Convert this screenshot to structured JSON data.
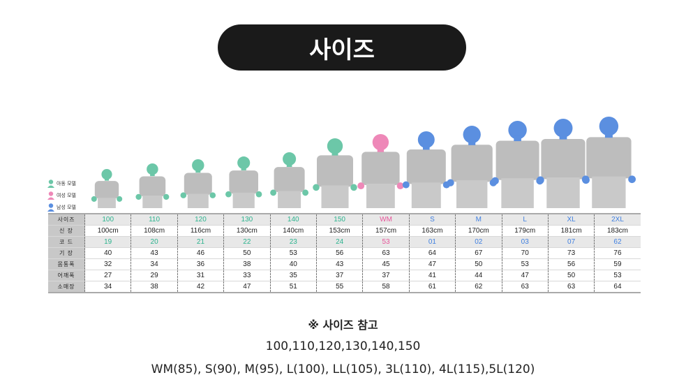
{
  "title": "사이즈",
  "legend": [
    {
      "label": "아동 모델",
      "color": "#6cc7a8"
    },
    {
      "label": "여성 모델",
      "color": "#ee88b8"
    },
    {
      "label": "남성 모델",
      "color": "#5b8fe0"
    }
  ],
  "colors": {
    "child": "#2bb38e",
    "women": "#e8559a",
    "men": "#3f7fe0",
    "body": "#bdbdbd"
  },
  "table": {
    "row_headers": [
      "사이즈",
      "신 장",
      "코 드",
      "기 장",
      "몸통폭",
      "어깨폭",
      "소매장"
    ],
    "columns": [
      {
        "size": "100",
        "height": "100cm",
        "code": "19",
        "length": "40",
        "chest": "32",
        "shoulder": "27",
        "sleeve": "34",
        "group": "child"
      },
      {
        "size": "110",
        "height": "108cm",
        "code": "20",
        "length": "43",
        "chest": "34",
        "shoulder": "29",
        "sleeve": "38",
        "group": "child"
      },
      {
        "size": "120",
        "height": "116cm",
        "code": "21",
        "length": "46",
        "chest": "36",
        "shoulder": "31",
        "sleeve": "42",
        "group": "child"
      },
      {
        "size": "130",
        "height": "130cm",
        "code": "22",
        "length": "50",
        "chest": "38",
        "shoulder": "33",
        "sleeve": "47",
        "group": "child"
      },
      {
        "size": "140",
        "height": "140cm",
        "code": "23",
        "length": "53",
        "chest": "40",
        "shoulder": "35",
        "sleeve": "51",
        "group": "child"
      },
      {
        "size": "150",
        "height": "153cm",
        "code": "24",
        "length": "56",
        "chest": "43",
        "shoulder": "37",
        "sleeve": "55",
        "group": "child"
      },
      {
        "size": "WM",
        "height": "157cm",
        "code": "53",
        "length": "63",
        "chest": "45",
        "shoulder": "37",
        "sleeve": "58",
        "group": "women"
      },
      {
        "size": "S",
        "height": "163cm",
        "code": "01",
        "length": "64",
        "chest": "47",
        "shoulder": "41",
        "sleeve": "61",
        "group": "men"
      },
      {
        "size": "M",
        "height": "170cm",
        "code": "02",
        "length": "67",
        "chest": "50",
        "shoulder": "44",
        "sleeve": "62",
        "group": "men"
      },
      {
        "size": "L",
        "height": "179cm",
        "code": "03",
        "length": "70",
        "chest": "53",
        "shoulder": "47",
        "sleeve": "63",
        "group": "men"
      },
      {
        "size": "XL",
        "height": "181cm",
        "code": "07",
        "length": "73",
        "chest": "56",
        "shoulder": "50",
        "sleeve": "63",
        "group": "men"
      },
      {
        "size": "2XL",
        "height": "183cm",
        "code": "62",
        "length": "76",
        "chest": "59",
        "shoulder": "53",
        "sleeve": "64",
        "group": "men"
      }
    ]
  },
  "notes": {
    "heading": "※ 사이즈 참고",
    "line1": "100,110,120,130,140,150",
    "line2": "WM(85), S(90), M(95), L(100), LL(105), 3L(110), 4L(115),5L(120)"
  }
}
